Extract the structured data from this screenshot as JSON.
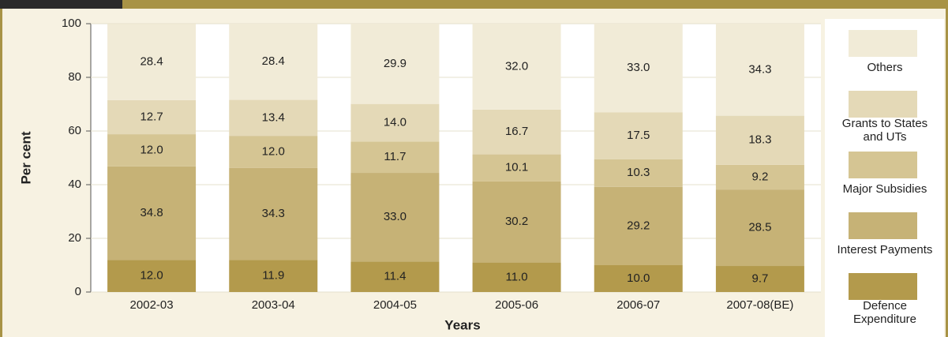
{
  "chart_data": {
    "type": "stacked-bar",
    "categories": [
      "2002-03",
      "2003-04",
      "2004-05",
      "2005-06",
      "2006-07",
      "2007-08(BE)"
    ],
    "series": [
      {
        "name": "Defence Expenditure",
        "color": "#b39a4c",
        "values": [
          12.0,
          11.9,
          11.4,
          11.0,
          10.0,
          9.7
        ],
        "value_labels": [
          "12.0",
          "11.9",
          "11.4",
          "11.0",
          "10.0",
          "9.7"
        ]
      },
      {
        "name": "Interest Payments",
        "color": "#c6b276",
        "values": [
          34.8,
          34.3,
          33.0,
          30.2,
          29.2,
          28.5
        ],
        "value_labels": [
          "34.8",
          "34.3",
          "33.0",
          "30.2",
          "29.2",
          "28.5"
        ]
      },
      {
        "name": "Major Subsidies",
        "color": "#d5c593",
        "values": [
          12.0,
          12.0,
          11.7,
          10.1,
          10.3,
          9.2
        ],
        "value_labels": [
          "12.0",
          "12.0",
          "11.7",
          "10.1",
          "10.3",
          "9.2"
        ]
      },
      {
        "name": "Grants to States and UTs",
        "color": "#e4d9b7",
        "values": [
          12.7,
          13.4,
          14.0,
          16.7,
          17.5,
          18.3
        ],
        "value_labels": [
          "12.7",
          "13.4",
          "14.0",
          "16.7",
          "17.5",
          "18.3"
        ]
      },
      {
        "name": "Others",
        "color": "#f1ebd7",
        "values": [
          28.4,
          28.4,
          29.9,
          32.0,
          33.0,
          34.3
        ],
        "value_labels": [
          "28.4",
          "28.4",
          "29.9",
          "32.0",
          "33.0",
          "34.3"
        ]
      }
    ],
    "ylim": [
      0,
      100
    ],
    "yticks": [
      0,
      20,
      40,
      60,
      80,
      100
    ],
    "y_label": "Per cent",
    "x_label": "Years",
    "legend": "right"
  }
}
